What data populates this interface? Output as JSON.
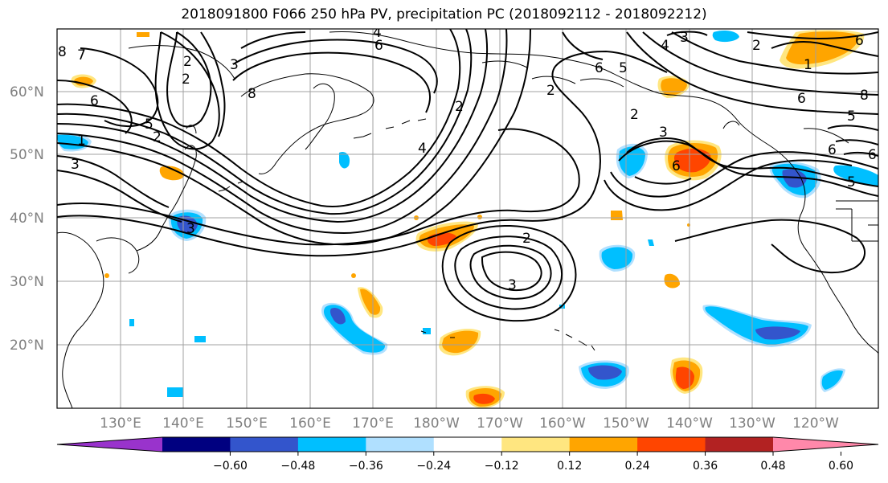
{
  "title": "2018091800 F066 250 hPa PV, precipitation PC (2018092112 - 2018092212)",
  "lat_labels": [
    "60°N",
    "50°N",
    "40°N",
    "30°N",
    "20°N"
  ],
  "lon_labels": [
    "130°E",
    "140°E",
    "150°E",
    "160°E",
    "170°E",
    "180°W",
    "170°W",
    "160°W",
    "150°W",
    "140°W",
    "130°W",
    "120°W"
  ],
  "colorbar": {
    "colors": [
      "#9933cc",
      "#000080",
      "#3355cc",
      "#00bfff",
      "#b0e0ff",
      "#ffffff",
      "#ffe680",
      "#ffa500",
      "#ff4500",
      "#b22222",
      "#ff88aa"
    ],
    "tick_labels": [
      "−0.60",
      "−0.48",
      "−0.36",
      "−0.24",
      "−0.12",
      "0.12",
      "0.24",
      "0.36",
      "0.48",
      "0.60"
    ]
  },
  "contour_labels": [
    "8",
    "7",
    "6",
    "5",
    "1",
    "3",
    "2",
    "3",
    "8",
    "4",
    "2",
    "3",
    "4",
    "6",
    "2",
    "3",
    "2",
    "6",
    "5",
    "4",
    "2",
    "3",
    "6",
    "2",
    "2",
    "1",
    "6",
    "5",
    "8",
    "6",
    "5",
    "6",
    "2",
    "3",
    "6"
  ]
}
